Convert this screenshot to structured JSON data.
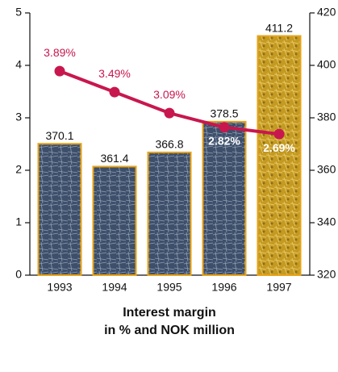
{
  "chart_data": {
    "type": "bar-line",
    "title": "Interest margin",
    "subtitle": "in % and NOK million",
    "categories": [
      "1993",
      "1994",
      "1995",
      "1996",
      "1997"
    ],
    "series": [
      {
        "type": "bar",
        "axis": "y2",
        "colors": [
          "#4c5f7c",
          "#4c5f7c",
          "#4c5f7c",
          "#4c5f7c",
          "#c9a12a"
        ],
        "border": "#e8a317",
        "values": [
          370.1,
          361.4,
          366.8,
          378.5,
          411.2
        ]
      },
      {
        "type": "line",
        "axis": "y",
        "color": "#c8174e",
        "values": [
          3.89,
          3.49,
          3.09,
          2.82,
          2.69
        ],
        "value_labels": [
          "3.89%",
          "3.49%",
          "3.09%",
          "2.82%",
          "2.69%"
        ]
      }
    ],
    "ylim": [
      0,
      5
    ],
    "yticks": [
      0,
      1,
      2,
      3,
      4,
      5
    ],
    "y2lim": [
      320,
      420
    ],
    "y2ticks": [
      320,
      340,
      360,
      380,
      400,
      420
    ]
  }
}
